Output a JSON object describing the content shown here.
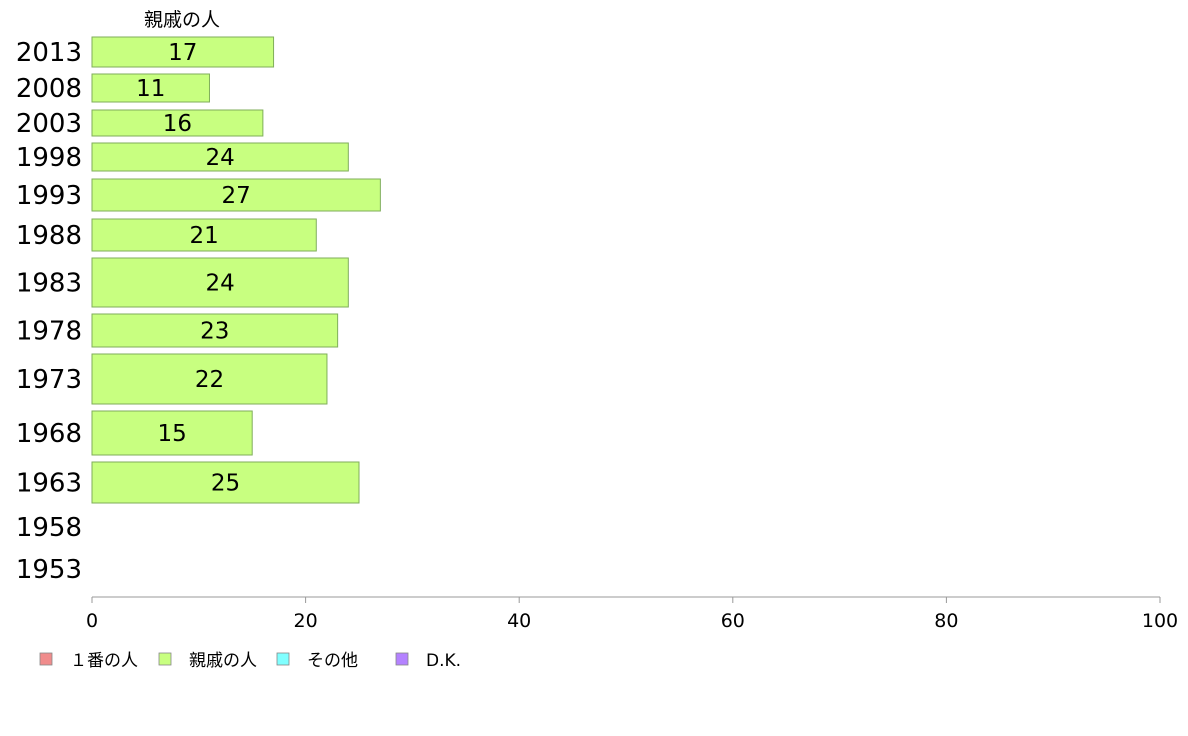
{
  "chart_data": {
    "type": "bar",
    "orientation": "horizontal",
    "series_title": "親戚の人",
    "categories": [
      "2013",
      "2008",
      "2003",
      "1998",
      "1993",
      "1988",
      "1983",
      "1978",
      "1973",
      "1968",
      "1963",
      "1958",
      "1953"
    ],
    "series": [
      {
        "name": "親戚の人",
        "color": "#c8ff80",
        "values": [
          17,
          11,
          16,
          24,
          27,
          21,
          24,
          23,
          22,
          15,
          25,
          null,
          null
        ]
      }
    ],
    "value_labels": [
      "17",
      "11",
      "16",
      "24",
      "27",
      "21",
      "24",
      "23",
      "22",
      "15",
      "25",
      "",
      ""
    ],
    "xlim": [
      0,
      100
    ],
    "xticks": [
      "0",
      "20",
      "40",
      "60",
      "80",
      "100"
    ],
    "grid": false,
    "legend": {
      "placement": "bottom-left",
      "items": [
        {
          "label": "１番の人",
          "color": "#f08c8c"
        },
        {
          "label": "親戚の人",
          "color": "#c8ff80"
        },
        {
          "label": "その他",
          "color": "#80ffff"
        },
        {
          "label": "D.K.",
          "color": "#b482ff"
        }
      ]
    }
  }
}
